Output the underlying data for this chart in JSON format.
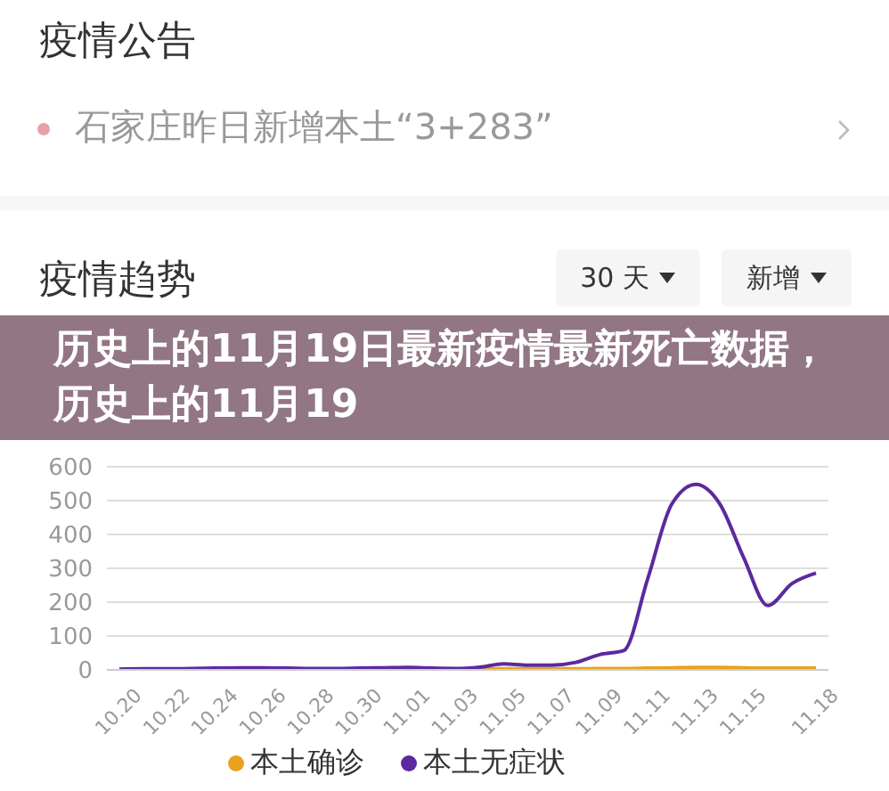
{
  "chart_data": {
    "type": "line",
    "title": "历史上的11月19日最新疫情最新死亡数据，历史上的11月19",
    "annotations": [
      "疫情公告",
      "石家庄昨日新增本土“3+283”",
      "疫情趋势",
      "30 天",
      "新增"
    ],
    "categories": [
      "10.20",
      null,
      "10.22",
      null,
      "10.24",
      null,
      "10.26",
      null,
      "10.28",
      null,
      "10.30",
      null,
      "11.01",
      null,
      "11.03",
      null,
      "11.05",
      null,
      "11.07",
      null,
      "11.09",
      null,
      "11.11",
      null,
      "11.13",
      null,
      "11.15",
      null,
      null,
      "11.18"
    ],
    "series": [
      {
        "name": "本土确诊",
        "color": "#e8a21e",
        "values": [
          null,
          null,
          null,
          null,
          null,
          null,
          null,
          null,
          null,
          null,
          null,
          null,
          null,
          null,
          null,
          3,
          3,
          3,
          3,
          3,
          4,
          4,
          5,
          6,
          7,
          7,
          6,
          5,
          5,
          5
        ]
      },
      {
        "name": "本土无症状",
        "color": "#5b2a9e",
        "values": [
          2,
          3,
          3,
          4,
          5,
          6,
          6,
          5,
          4,
          4,
          5,
          6,
          7,
          5,
          4,
          8,
          18,
          14,
          14,
          22,
          45,
          57,
          270,
          490,
          548,
          490,
          330,
          190,
          255,
          286
        ]
      }
    ],
    "ylim": [
      0,
      600
    ],
    "yticks": [
      0,
      100,
      200,
      300,
      400,
      500,
      600
    ],
    "grid": "y",
    "legend": "bottom",
    "marker": "none",
    "line_style": "solid"
  }
}
